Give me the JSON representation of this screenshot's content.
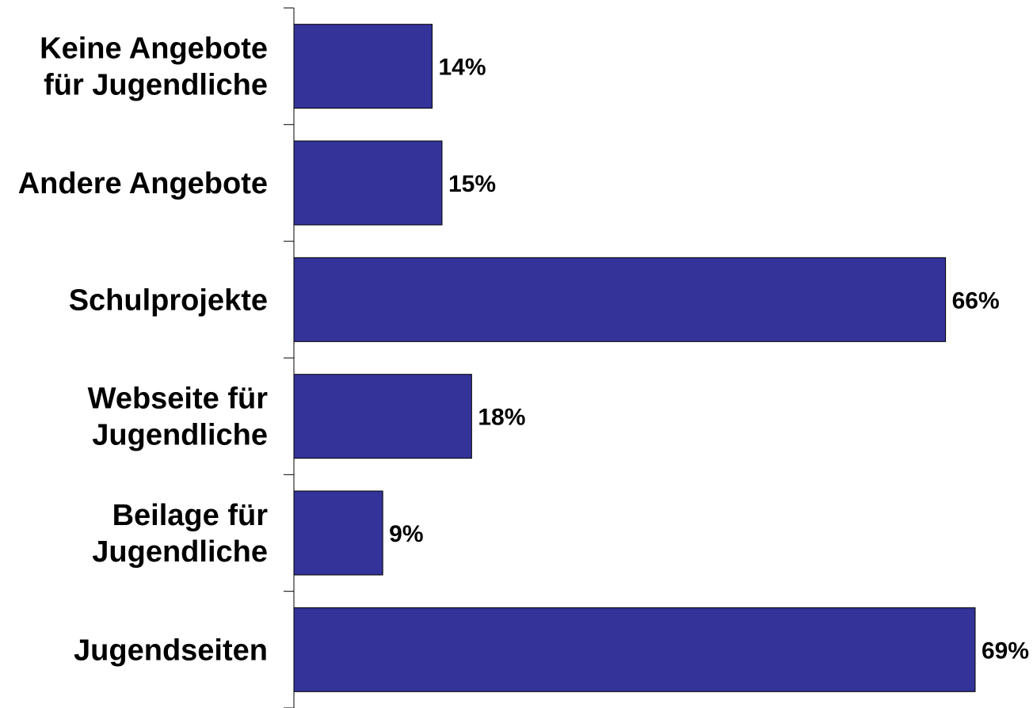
{
  "colors": {
    "bar_fill": "#333399",
    "bar_stroke": "#000000",
    "axis": "#000000",
    "background": "#ffffff"
  },
  "chart_data": {
    "type": "bar",
    "orientation": "horizontal",
    "categories": [
      [
        "Keine Angebote",
        "für Jugendliche"
      ],
      [
        "Andere Angebote"
      ],
      [
        "Schulprojekte"
      ],
      [
        "Webseite für",
        "Jugendliche"
      ],
      [
        "Beilage für",
        "Jugendliche"
      ],
      [
        "Jugendseiten"
      ]
    ],
    "values": [
      14,
      15,
      66,
      18,
      9,
      69
    ],
    "value_labels": [
      "14%",
      "15%",
      "66%",
      "18%",
      "9%",
      "69%"
    ],
    "unit": "%",
    "xlim": [
      0,
      70
    ],
    "grid": false,
    "legend": "none"
  }
}
